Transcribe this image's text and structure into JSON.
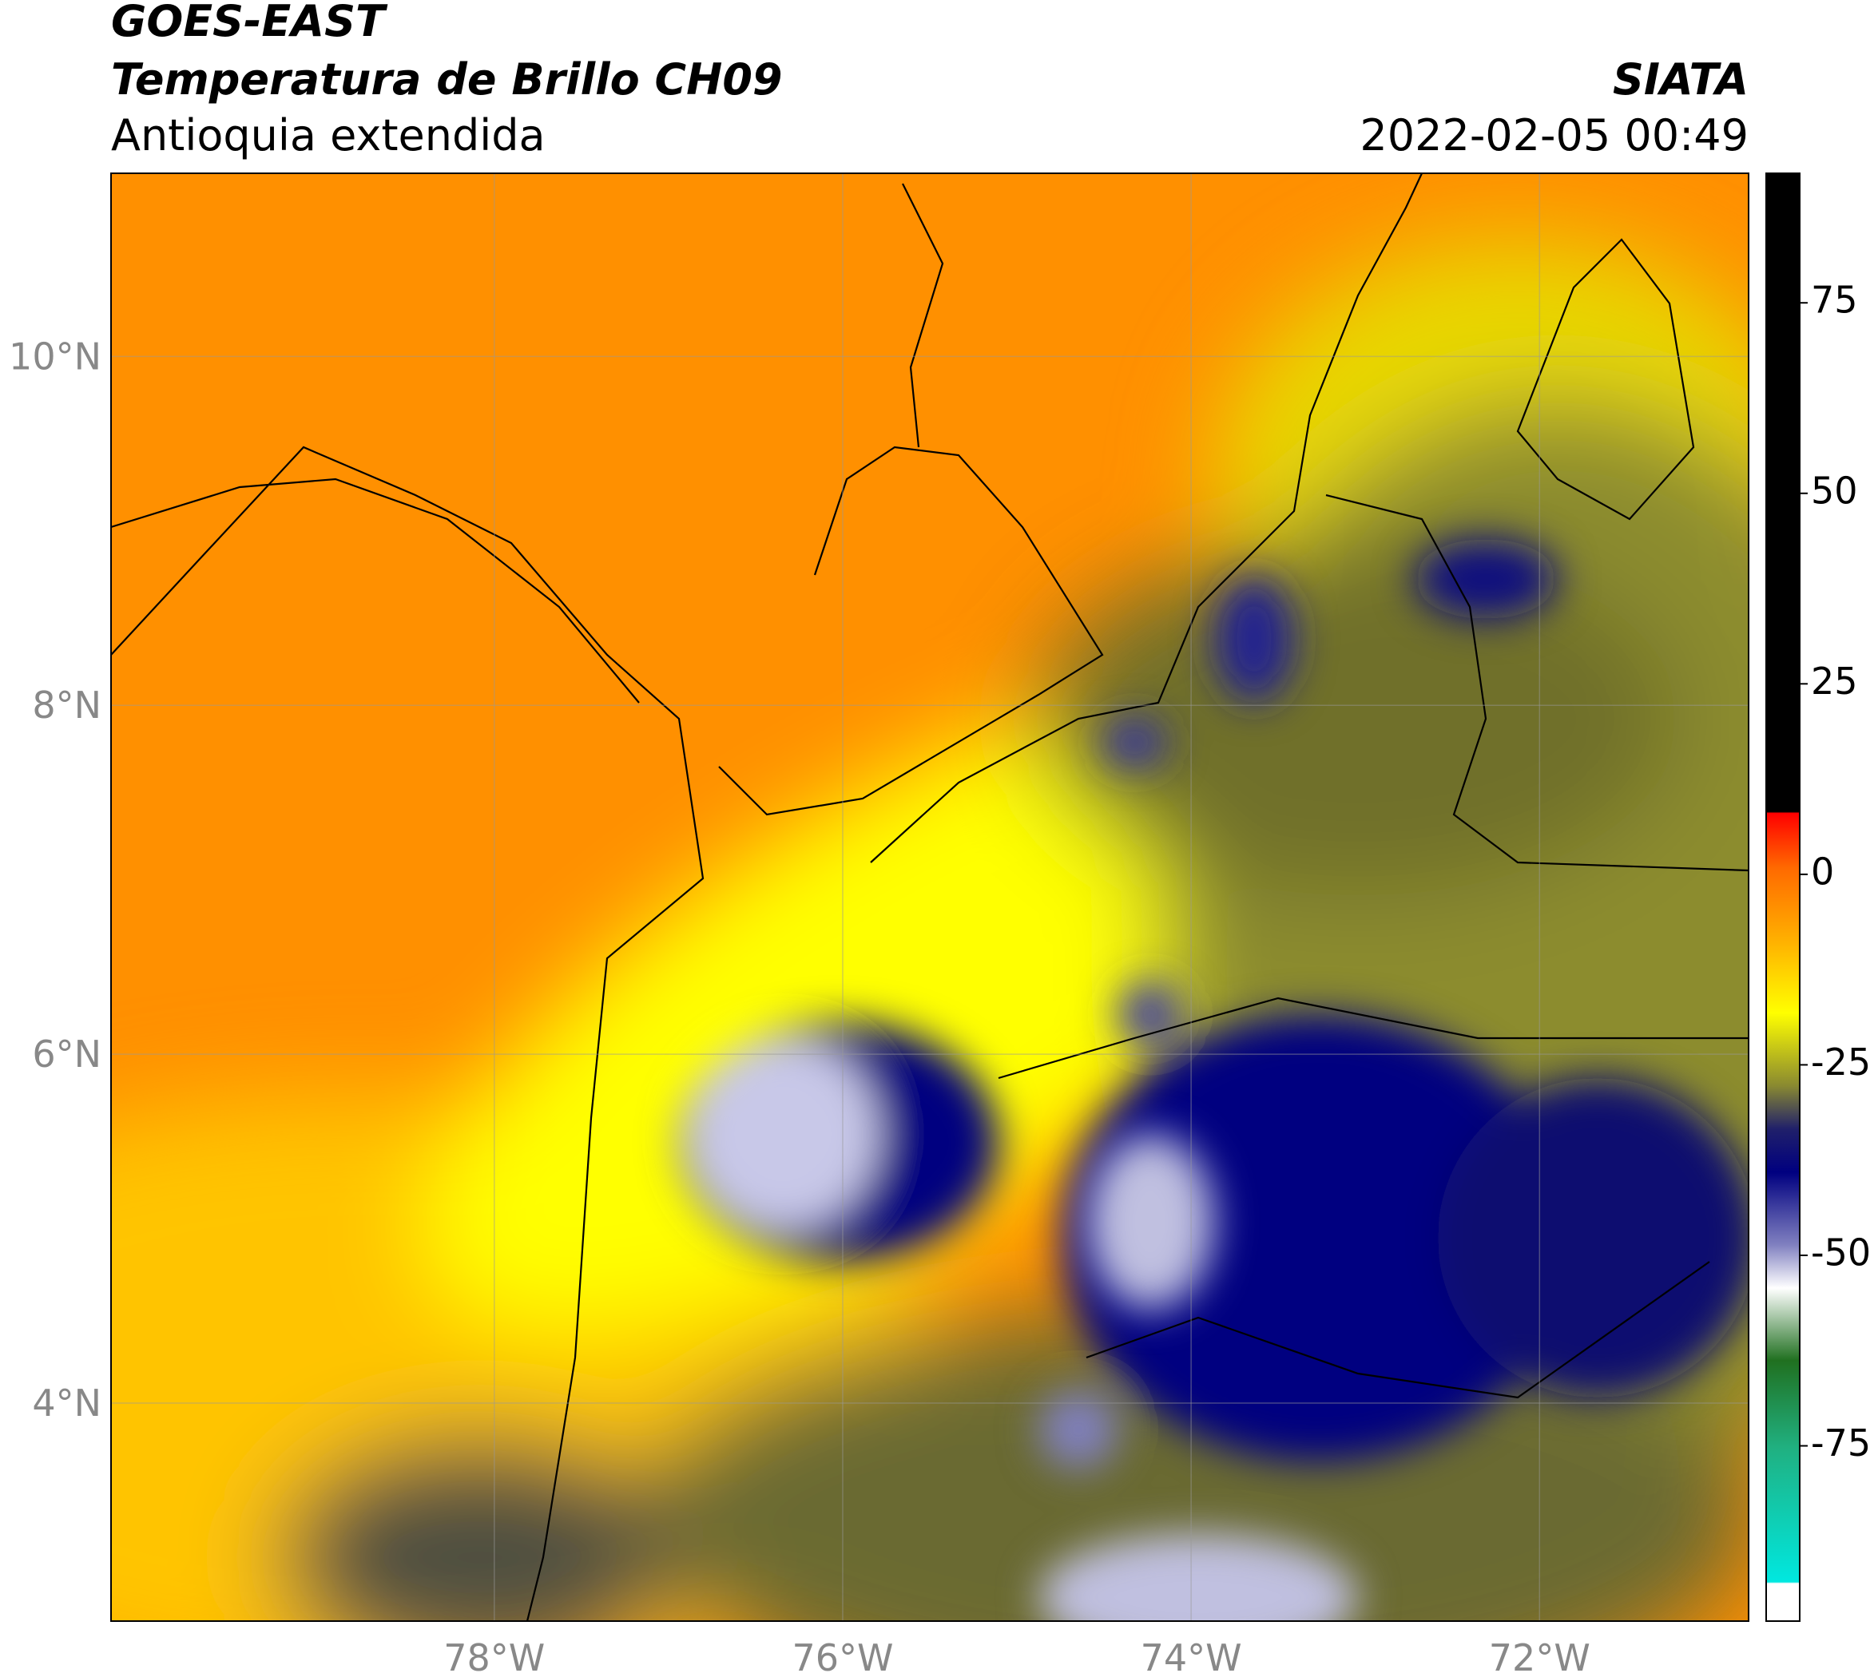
{
  "header": {
    "title_line1": "GOES-EAST",
    "title_line2": "Temperatura de Brillo CH09",
    "subtitle": "Antioquia extendida",
    "source": "SIATA",
    "datetime": "2022-02-05 00:49"
  },
  "map": {
    "xlim": [
      -80.2,
      -70.8
    ],
    "ylim": [
      2.75,
      11.05
    ],
    "xticks": [
      {
        "value": -78,
        "label": "78°W"
      },
      {
        "value": -76,
        "label": "76°W"
      },
      {
        "value": -74,
        "label": "74°W"
      },
      {
        "value": -72,
        "label": "72°W"
      }
    ],
    "yticks": [
      {
        "value": 4,
        "label": "4°N"
      },
      {
        "value": 6,
        "label": "6°N"
      },
      {
        "value": 8,
        "label": "8°N"
      },
      {
        "value": 10,
        "label": "10°N"
      }
    ]
  },
  "colorbar": {
    "lim": [
      -98,
      92
    ],
    "ticks": [
      75,
      50,
      25,
      0,
      -25,
      -50,
      -75
    ]
  }
}
